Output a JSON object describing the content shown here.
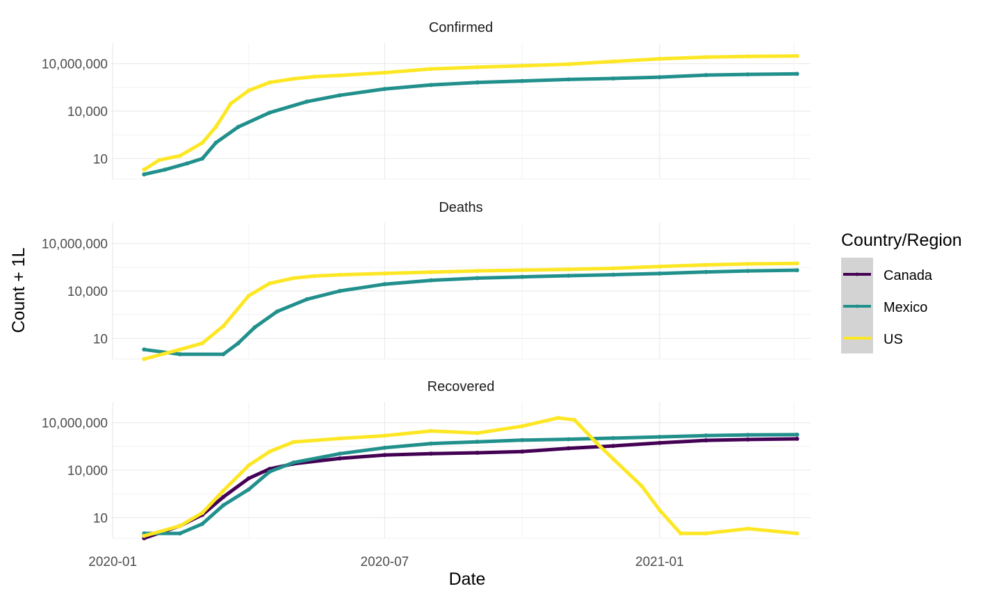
{
  "chart_data": {
    "type": "line",
    "facet_by": "Type",
    "facets": [
      "Confirmed",
      "Deaths",
      "Recovered"
    ],
    "xlabel": "Date",
    "ylabel": "Count + 1L",
    "x_ticks": [
      "2020-01",
      "2020-07",
      "2021-01"
    ],
    "y_ticks": [
      "10",
      "10,000",
      "10,000,000"
    ],
    "y_scale": "log10",
    "xlim": [
      "2019-12-31",
      "2021-04-12"
    ],
    "ylim": [
      0.5,
      200000000
    ],
    "grid": true,
    "legend": {
      "title": "Country/Region",
      "position": "right",
      "items": [
        {
          "label": "Canada",
          "color": "#440154"
        },
        {
          "label": "Mexico",
          "color": "#21908C"
        },
        {
          "label": "US",
          "color": "#FDE725"
        }
      ]
    },
    "panels": [
      {
        "facet": "Confirmed",
        "series": [
          {
            "name": "Mexico",
            "color": "#21908C",
            "points": [
              [
                "2020-01-22",
                1
              ],
              [
                "2020-02-05",
                2
              ],
              [
                "2020-02-20",
                5
              ],
              [
                "2020-03-01",
                10
              ],
              [
                "2020-03-10",
                100
              ],
              [
                "2020-03-25",
                1000
              ],
              [
                "2020-04-15",
                8000
              ],
              [
                "2020-05-10",
                40000
              ],
              [
                "2020-06-01",
                100000
              ],
              [
                "2020-07-01",
                250000
              ],
              [
                "2020-08-01",
                450000
              ],
              [
                "2020-09-01",
                650000
              ],
              [
                "2020-10-01",
                800000
              ],
              [
                "2020-11-01",
                1000000
              ],
              [
                "2020-12-01",
                1150000
              ],
              [
                "2021-01-01",
                1400000
              ],
              [
                "2021-02-01",
                1900000
              ],
              [
                "2021-03-01",
                2100000
              ],
              [
                "2021-04-03",
                2250000
              ]
            ]
          },
          {
            "name": "US",
            "color": "#FDE725",
            "points": [
              [
                "2020-01-22",
                2
              ],
              [
                "2020-02-01",
                8
              ],
              [
                "2020-02-15",
                15
              ],
              [
                "2020-03-01",
                100
              ],
              [
                "2020-03-10",
                1000
              ],
              [
                "2020-03-20",
                30000
              ],
              [
                "2020-04-01",
                200000
              ],
              [
                "2020-04-15",
                650000
              ],
              [
                "2020-05-01",
                1100000
              ],
              [
                "2020-05-15",
                1500000
              ],
              [
                "2020-06-01",
                1800000
              ],
              [
                "2020-07-01",
                2700000
              ],
              [
                "2020-08-01",
                4600000
              ],
              [
                "2020-09-01",
                6000000
              ],
              [
                "2020-10-01",
                7300000
              ],
              [
                "2020-11-01",
                9300000
              ],
              [
                "2020-12-01",
                13700000
              ],
              [
                "2021-01-01",
                20000000
              ],
              [
                "2021-02-01",
                26000000
              ],
              [
                "2021-03-01",
                28500000
              ],
              [
                "2021-04-03",
                30500000
              ]
            ]
          }
        ]
      },
      {
        "facet": "Deaths",
        "series": [
          {
            "name": "Mexico",
            "color": "#21908C",
            "points": [
              [
                "2020-01-22",
                2
              ],
              [
                "2020-02-15",
                1
              ],
              [
                "2020-03-15",
                1
              ],
              [
                "2020-03-25",
                5
              ],
              [
                "2020-04-05",
                50
              ],
              [
                "2020-04-20",
                500
              ],
              [
                "2020-05-10",
                3000
              ],
              [
                "2020-06-01",
                10000
              ],
              [
                "2020-07-01",
                27000
              ],
              [
                "2020-08-01",
                47000
              ],
              [
                "2020-09-01",
                65000
              ],
              [
                "2020-10-01",
                78000
              ],
              [
                "2020-11-01",
                92000
              ],
              [
                "2020-12-01",
                106000
              ],
              [
                "2021-01-01",
                126000
              ],
              [
                "2021-02-01",
                160000
              ],
              [
                "2021-03-01",
                185000
              ],
              [
                "2021-04-03",
                205000
              ]
            ]
          },
          {
            "name": "US",
            "color": "#FDE725",
            "points": [
              [
                "2020-01-22",
                0.3
              ],
              [
                "2020-02-15",
                2
              ],
              [
                "2020-03-01",
                5
              ],
              [
                "2020-03-15",
                60
              ],
              [
                "2020-04-01",
                5000
              ],
              [
                "2020-04-15",
                30000
              ],
              [
                "2020-05-01",
                65000
              ],
              [
                "2020-05-15",
                88000
              ],
              [
                "2020-06-01",
                105000
              ],
              [
                "2020-07-01",
                127000
              ],
              [
                "2020-08-01",
                155000
              ],
              [
                "2020-09-01",
                185000
              ],
              [
                "2020-10-01",
                208000
              ],
              [
                "2020-11-01",
                231000
              ],
              [
                "2020-12-01",
                270000
              ],
              [
                "2021-01-01",
                350000
              ],
              [
                "2021-02-01",
                445000
              ],
              [
                "2021-03-01",
                515000
              ],
              [
                "2021-04-03",
                555000
              ]
            ]
          }
        ]
      },
      {
        "facet": "Recovered",
        "series": [
          {
            "name": "Canada",
            "color": "#440154",
            "points": [
              [
                "2020-01-22",
                0.5
              ],
              [
                "2020-02-15",
                3
              ],
              [
                "2020-03-01",
                15
              ],
              [
                "2020-03-15",
                200
              ],
              [
                "2020-04-01",
                3000
              ],
              [
                "2020-04-15",
                12000
              ],
              [
                "2020-05-01",
                25000
              ],
              [
                "2020-06-01",
                55000
              ],
              [
                "2020-07-01",
                90000
              ],
              [
                "2020-08-01",
                110000
              ],
              [
                "2020-09-01",
                125000
              ],
              [
                "2020-10-01",
                150000
              ],
              [
                "2020-11-01",
                240000
              ],
              [
                "2020-12-01",
                340000
              ],
              [
                "2021-01-01",
                530000
              ],
              [
                "2021-02-01",
                760000
              ],
              [
                "2021-03-01",
                860000
              ],
              [
                "2021-04-03",
                950000
              ]
            ]
          },
          {
            "name": "Mexico",
            "color": "#21908C",
            "points": [
              [
                "2020-01-22",
                1
              ],
              [
                "2020-02-15",
                1
              ],
              [
                "2020-03-01",
                4
              ],
              [
                "2020-03-15",
                60
              ],
              [
                "2020-04-01",
                600
              ],
              [
                "2020-04-15",
                8000
              ],
              [
                "2020-05-01",
                30000
              ],
              [
                "2020-06-01",
                110000
              ],
              [
                "2020-07-01",
                260000
              ],
              [
                "2020-08-01",
                480000
              ],
              [
                "2020-09-01",
                620000
              ],
              [
                "2020-10-01",
                790000
              ],
              [
                "2020-11-01",
                900000
              ],
              [
                "2020-12-01",
                1060000
              ],
              [
                "2021-01-01",
                1270000
              ],
              [
                "2021-02-01",
                1540000
              ],
              [
                "2021-03-01",
                1680000
              ],
              [
                "2021-04-03",
                1750000
              ]
            ]
          },
          {
            "name": "US",
            "color": "#FDE725",
            "points": [
              [
                "2020-01-22",
                0.7
              ],
              [
                "2020-02-15",
                3
              ],
              [
                "2020-03-01",
                20
              ],
              [
                "2020-03-15",
                500
              ],
              [
                "2020-04-01",
                20000
              ],
              [
                "2020-04-15",
                150000
              ],
              [
                "2020-05-01",
                600000
              ],
              [
                "2020-06-01",
                1000000
              ],
              [
                "2020-07-01",
                1500000
              ],
              [
                "2020-08-01",
                3000000
              ],
              [
                "2020-09-01",
                2200000
              ],
              [
                "2020-10-01",
                6000000
              ],
              [
                "2020-10-25",
                20000000
              ],
              [
                "2020-11-05",
                15000000
              ],
              [
                "2020-11-20",
                500000
              ],
              [
                "2020-12-01",
                50000
              ],
              [
                "2020-12-20",
                1000
              ],
              [
                "2021-01-01",
                30
              ],
              [
                "2021-01-15",
                1
              ],
              [
                "2021-02-01",
                1
              ],
              [
                "2021-03-01",
                2
              ],
              [
                "2021-04-03",
                1
              ]
            ]
          }
        ]
      }
    ]
  }
}
